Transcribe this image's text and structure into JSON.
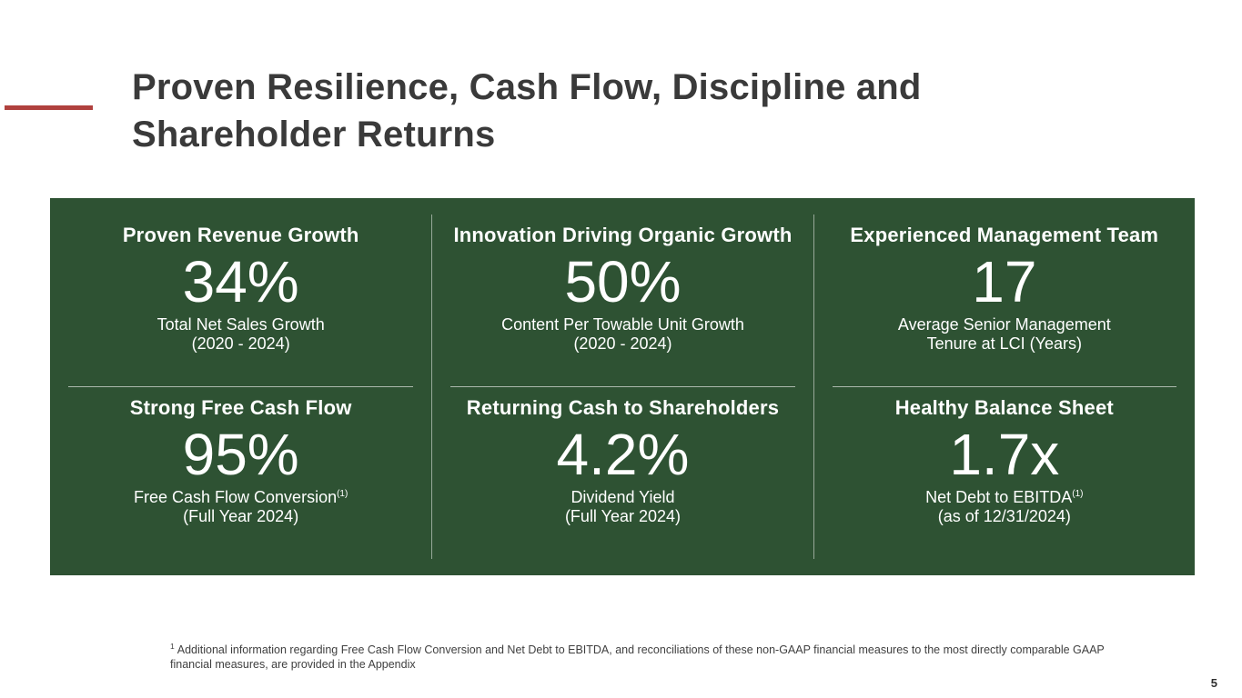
{
  "slide": {
    "title_line1": "Proven Resilience, Cash Flow, Discipline and",
    "title_line2": "Shareholder Returns",
    "page_number": "5"
  },
  "colors": {
    "accent_red": "#b0413e",
    "panel_green": "#2e5233"
  },
  "metrics": [
    {
      "heading": "Proven Revenue Growth",
      "value": "34%",
      "caption1": "Total Net Sales Growth",
      "caption1_sup": "",
      "caption2": "(2020 - 2024)"
    },
    {
      "heading": "Innovation Driving Organic Growth",
      "value": "50%",
      "caption1": "Content Per Towable Unit Growth",
      "caption1_sup": "",
      "caption2": "(2020 - 2024)"
    },
    {
      "heading": "Experienced Management Team",
      "value": "17",
      "caption1": "Average Senior Management",
      "caption1_sup": "",
      "caption2": "Tenure at LCI (Years)"
    },
    {
      "heading": "Strong Free Cash Flow",
      "value": "95%",
      "caption1": "Free Cash Flow Conversion",
      "caption1_sup": "(1)",
      "caption2": "(Full Year 2024)"
    },
    {
      "heading": "Returning Cash to Shareholders",
      "value": "4.2%",
      "caption1": "Dividend Yield",
      "caption1_sup": "",
      "caption2": "(Full Year 2024)"
    },
    {
      "heading": "Healthy Balance Sheet",
      "value": "1.7x",
      "caption1": "Net Debt to EBITDA",
      "caption1_sup": "(1)",
      "caption2": "(as of 12/31/2024)"
    }
  ],
  "footnote": {
    "sup": "1",
    "text": "Additional information regarding Free Cash Flow Conversion and Net Debt to EBITDA, and reconciliations of these non-GAAP financial measures to the most directly comparable GAAP financial measures, are  provided in the Appendix"
  }
}
